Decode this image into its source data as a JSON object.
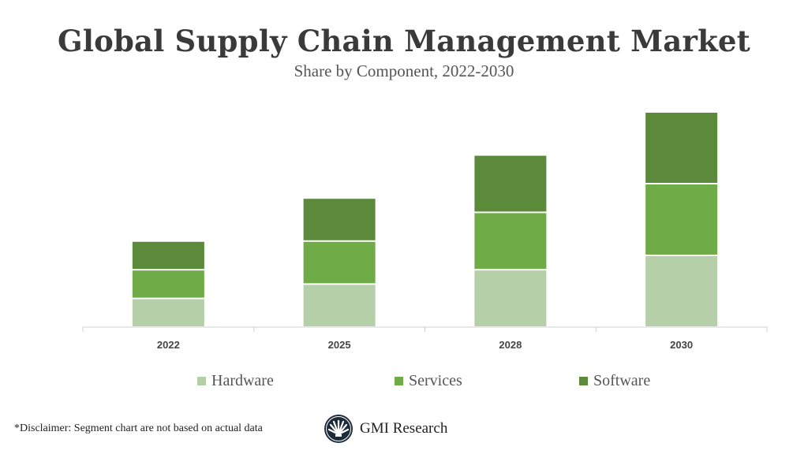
{
  "chart_data": {
    "type": "bar",
    "stacked": true,
    "title": "Global Supply Chain Management Market",
    "subtitle": "Share by Component, 2022-2030",
    "categories": [
      "2022",
      "2025",
      "2028",
      "2030"
    ],
    "series": [
      {
        "name": "Hardware",
        "color": "#b5cfa8",
        "values": [
          2,
          3,
          4,
          5
        ]
      },
      {
        "name": "Services",
        "color": "#6fac47",
        "values": [
          2,
          3,
          4,
          5
        ]
      },
      {
        "name": "Software",
        "color": "#5a8a3a",
        "values": [
          2,
          3,
          4,
          5
        ]
      }
    ],
    "xlabel": "",
    "ylabel": "",
    "grid": false,
    "legend": "bottom"
  },
  "footer": {
    "disclaimer": "*Disclaimer:  Segment chart are not based on actual data",
    "brand": "GMI Research"
  }
}
